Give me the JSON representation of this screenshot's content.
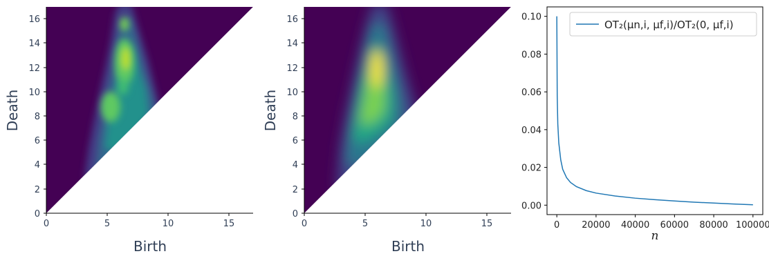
{
  "chart_data": [
    {
      "type": "heatmap",
      "title": "",
      "xlabel": "Birth",
      "ylabel": "Death",
      "xlim": [
        0,
        17
      ],
      "ylim": [
        0,
        17
      ],
      "xticks": [
        0,
        5,
        10,
        15
      ],
      "yticks": [
        0,
        2,
        4,
        6,
        8,
        10,
        12,
        14,
        16
      ],
      "colormap": "viridis",
      "background_color": "#440154",
      "region": "upper triangle (death >= birth)",
      "density_peaks": [
        {
          "birth": 6.5,
          "death": 12.5,
          "weight": 1.0
        },
        {
          "birth": 6.2,
          "death": 14.0,
          "weight": 0.8
        },
        {
          "birth": 5.3,
          "death": 8.8,
          "weight": 0.8
        },
        {
          "birth": 6.3,
          "death": 10.5,
          "weight": 0.75
        },
        {
          "birth": 6.0,
          "death": 15.6,
          "weight": 0.55
        }
      ]
    },
    {
      "type": "heatmap",
      "title": "",
      "xlabel": "Birth",
      "ylabel": "Death",
      "xlim": [
        0,
        17
      ],
      "ylim": [
        0,
        17
      ],
      "xticks": [
        0,
        5,
        10,
        15
      ],
      "yticks": [
        0,
        2,
        4,
        6,
        8,
        10,
        12,
        14,
        16
      ],
      "colormap": "viridis",
      "background_color": "#440154",
      "region": "upper triangle (death >= birth)",
      "density_peaks": [
        {
          "birth": 6.3,
          "death": 12.0,
          "weight": 1.0
        }
      ]
    },
    {
      "type": "line",
      "title": "",
      "xlabel": "n",
      "ylabel": "",
      "xlim": [
        -5000,
        105000
      ],
      "ylim": [
        -0.005,
        0.105
      ],
      "xticks": [
        0,
        20000,
        40000,
        60000,
        80000,
        100000
      ],
      "yticks": [
        0.0,
        0.02,
        0.04,
        0.06,
        0.08,
        0.1
      ],
      "grid": false,
      "legend_position": "top-right",
      "series": [
        {
          "name": "OT₂(μn,i, μf,i)/OT₂(0, μf,i)",
          "color": "#1f77b4",
          "x": [
            0,
            200,
            500,
            1000,
            2000,
            3000,
            5000,
            7000,
            10000,
            15000,
            20000,
            30000,
            40000,
            50000,
            60000,
            70000,
            80000,
            90000,
            100000
          ],
          "y": [
            0.1,
            0.058,
            0.043,
            0.033,
            0.024,
            0.019,
            0.0145,
            0.012,
            0.0098,
            0.0077,
            0.0064,
            0.0048,
            0.0037,
            0.0029,
            0.0022,
            0.0016,
            0.0011,
            0.0006,
            0.0002
          ]
        }
      ]
    }
  ]
}
